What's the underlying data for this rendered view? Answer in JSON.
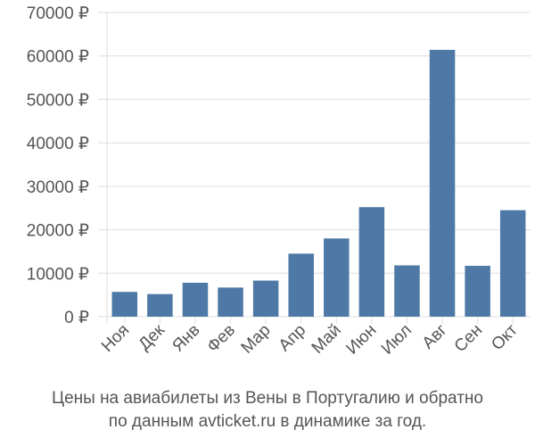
{
  "chart_data": {
    "type": "bar",
    "categories": [
      "Ноя",
      "Дек",
      "Янв",
      "Фев",
      "Мар",
      "Апр",
      "Май",
      "Июн",
      "Июл",
      "Авг",
      "Сен",
      "Окт"
    ],
    "values": [
      5700,
      5200,
      7800,
      6700,
      8300,
      14500,
      18000,
      25200,
      11800,
      61400,
      11700,
      24500
    ],
    "y_ticks": [
      "0 ₽",
      "10000 ₽",
      "20000 ₽",
      "30000 ₽",
      "40000 ₽",
      "50000 ₽",
      "60000 ₽",
      "70000 ₽"
    ],
    "ylim": [
      0,
      70000
    ],
    "bar_color": "#4e79a7",
    "grid_color": "#dddddd",
    "grid": true
  },
  "caption": {
    "line1": "Цены на авиабилеты из Вены в Португалию и обратно",
    "line2": "по данным avticket.ru в динамике за год."
  }
}
